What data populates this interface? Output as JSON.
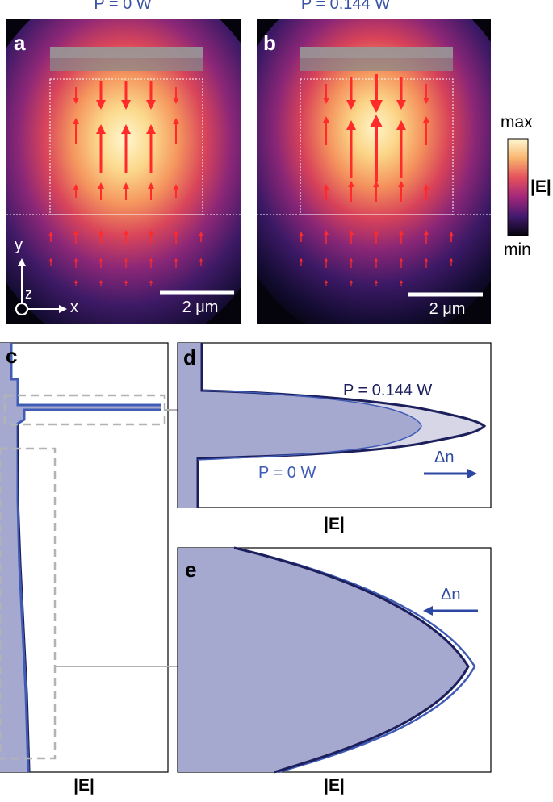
{
  "panel_a": {
    "letter": "a",
    "title": "P = 0 W",
    "scalebar": "2 μm"
  },
  "panel_b": {
    "letter": "b",
    "title": "P = 0.144 W",
    "scalebar": "2 μm"
  },
  "axes": {
    "y": "y",
    "x": "x",
    "z": "z"
  },
  "colorbar": {
    "max": "max",
    "min": "min",
    "label": "|E|"
  },
  "panel_c": {
    "letter": "c",
    "xlabel": "|E|"
  },
  "panel_d": {
    "letter": "d",
    "xlabel": "|E|",
    "label_high": "P = 0.144 W",
    "label_low": "P = 0 W",
    "delta": "Δn"
  },
  "panel_e": {
    "letter": "e",
    "xlabel": "|E|",
    "delta": "Δn"
  },
  "colors": {
    "p0": "#3f5bb5",
    "p144": "#1c1f5c",
    "fill": "#a6a9cf",
    "arrow": "#ff2b2b"
  }
}
